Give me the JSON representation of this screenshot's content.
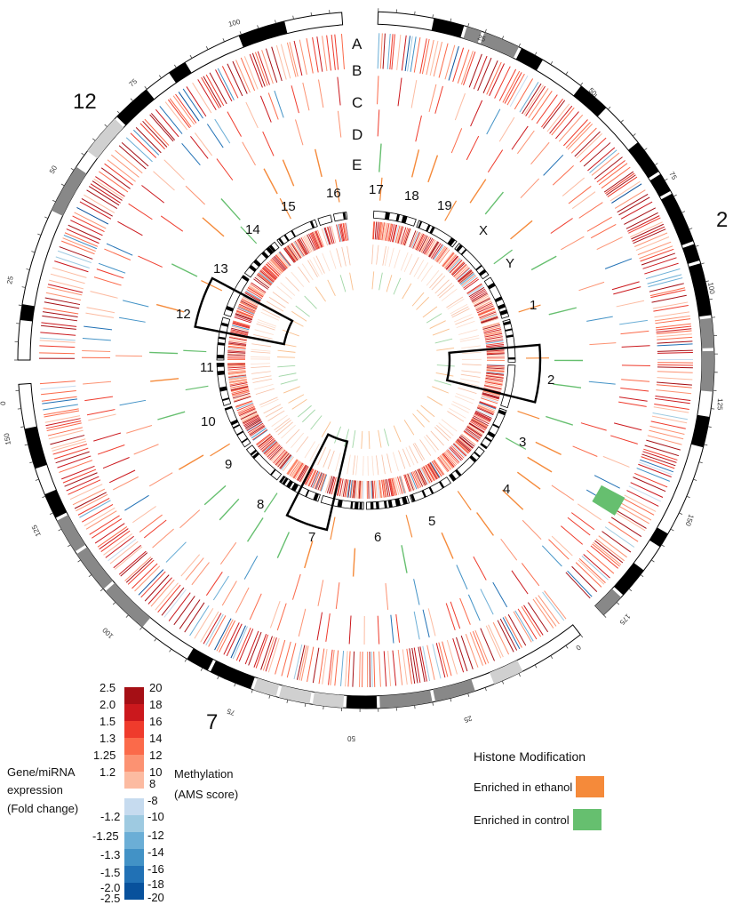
{
  "panels": {
    "chr2": {
      "label": "2",
      "ticks": [
        "25",
        "50",
        "75",
        "100",
        "125",
        "150",
        "175"
      ],
      "end_tick": "0"
    },
    "chr7": {
      "label": "7",
      "ticks": [
        "25",
        "50",
        "75",
        "100",
        "125",
        "150"
      ],
      "end_tick": "0"
    },
    "chr12": {
      "label": "12",
      "ticks": [
        "25",
        "50",
        "75",
        "100"
      ],
      "end_tick": "0"
    }
  },
  "track_labels": [
    "A",
    "B",
    "C",
    "D",
    "E"
  ],
  "genome_chromosomes": [
    "1",
    "2",
    "3",
    "4",
    "5",
    "6",
    "7",
    "8",
    "9",
    "10",
    "11",
    "12",
    "13",
    "14",
    "15",
    "16",
    "17",
    "18",
    "19",
    "X",
    "Y"
  ],
  "expression_legend": {
    "title_lines": [
      "Gene/miRNA",
      "expression",
      "(Fold change)"
    ],
    "positive_values": [
      "2.5",
      "2.0",
      "1.5",
      "1.3",
      "1.25",
      "1.2"
    ],
    "negative_values": [
      "-1.2",
      "-1.25",
      "-1.3",
      "-1.5",
      "-2.0",
      "-2.5"
    ]
  },
  "methylation_legend": {
    "title_lines": [
      "Methylation",
      "(AMS score)"
    ],
    "positive_values": [
      "20",
      "18",
      "16",
      "14",
      "12",
      "10",
      "8"
    ],
    "negative_values": [
      "-8",
      "-10",
      "-12",
      "-14",
      "-16",
      "-18",
      "-20"
    ]
  },
  "colors": {
    "red_scale": [
      "#a50f15",
      "#cb181d",
      "#ef3b2c",
      "#fb6a4a",
      "#fc9272",
      "#fcbba1"
    ],
    "blue_scale": [
      "#c6dbef",
      "#9ecae1",
      "#6baed6",
      "#4292c6",
      "#2171b5",
      "#08519c"
    ],
    "ethanol": "#f58a3a",
    "control": "#66bf6f"
  },
  "histone_legend": {
    "title": "Histone Modification",
    "items": [
      {
        "label": "Enriched in ethanol",
        "color": "#f58a3a"
      },
      {
        "label": "Enriched in control",
        "color": "#66bf6f"
      }
    ]
  }
}
